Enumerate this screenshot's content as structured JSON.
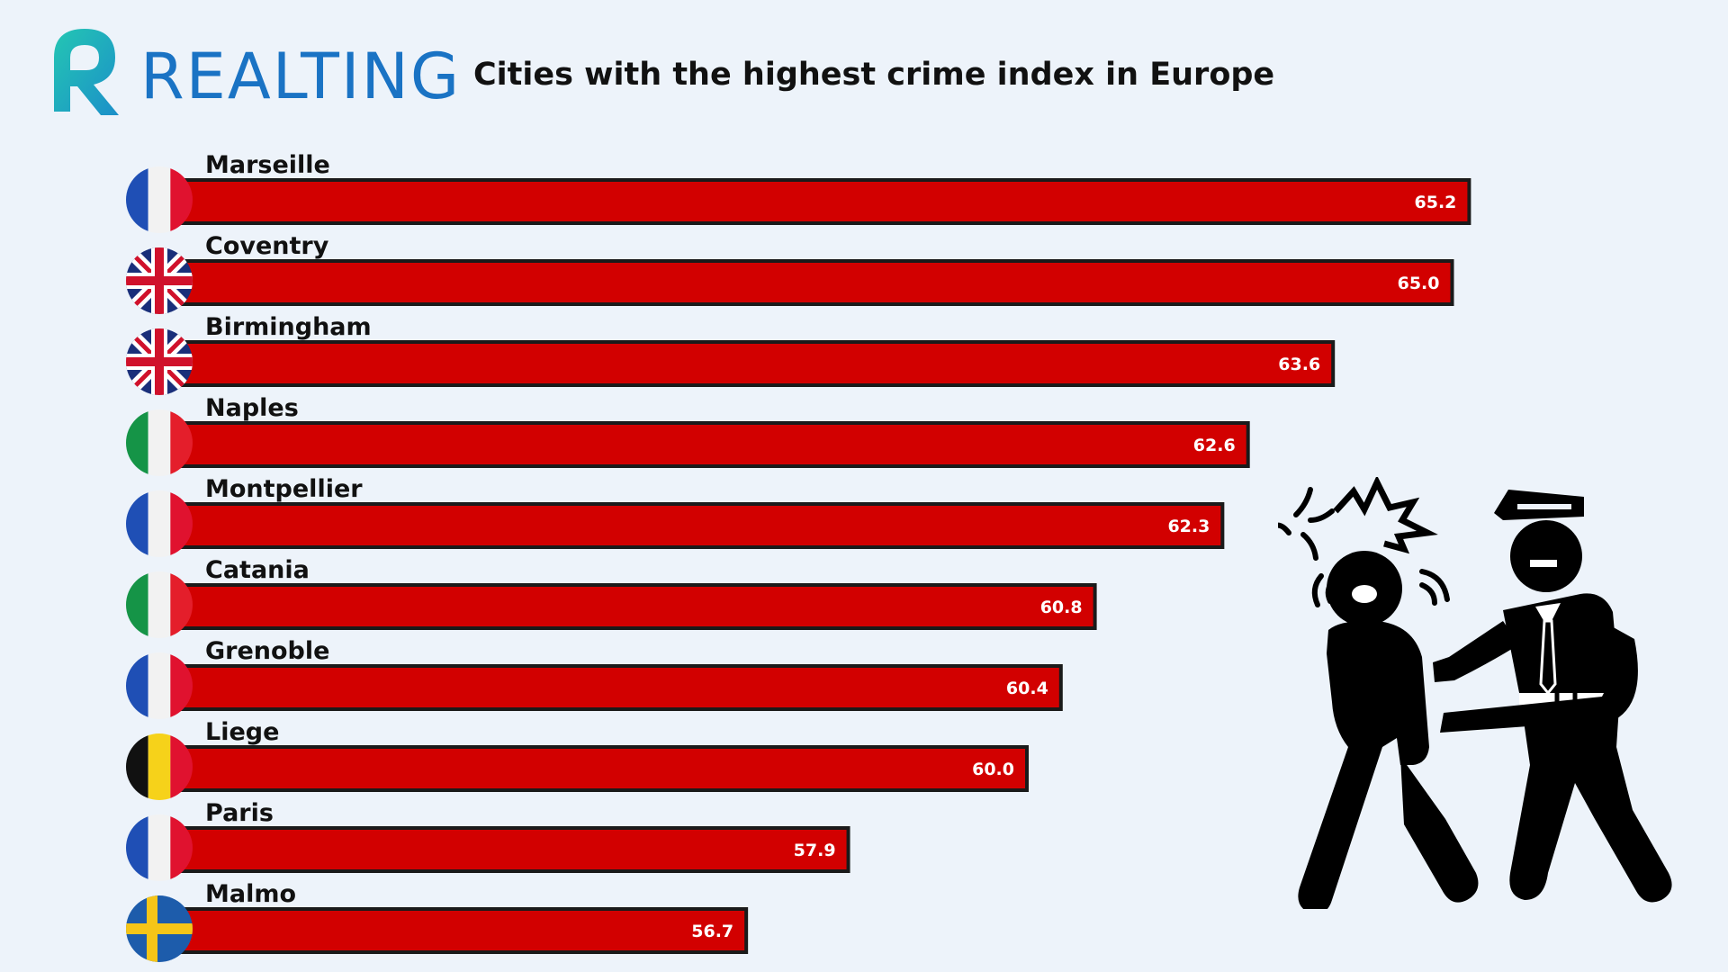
{
  "brand": {
    "name": "REALTING",
    "color": "#1a73c4",
    "icon": "realting-r-logo-icon"
  },
  "colors": {
    "bar_fill": "#d20000",
    "bar_border": "#1a1a1a",
    "background": "#edf3fa"
  },
  "illustration": {
    "icon": "police-arrest-icon"
  },
  "chart_data": {
    "type": "bar",
    "orientation": "horizontal",
    "title": "Cities with the highest crime index in Europe",
    "categories": [
      "Marseille",
      "Coventry",
      "Birmingham",
      "Naples",
      "Montpellier",
      "Catania",
      "Grenoble",
      "Liege",
      "Paris",
      "Malmo"
    ],
    "values": [
      65.2,
      65.0,
      63.6,
      62.6,
      62.3,
      60.8,
      60.4,
      60.0,
      57.9,
      56.7
    ],
    "value_labels": [
      "65.2",
      "65.0",
      "63.6",
      "62.6",
      "62.3",
      "60.8",
      "60.4",
      "60.0",
      "57.9",
      "56.7"
    ],
    "flags": [
      "france-flag-icon",
      "uk-flag-icon",
      "uk-flag-icon",
      "italy-flag-icon",
      "france-flag-icon",
      "italy-flag-icon",
      "france-flag-icon",
      "belgium-flag-icon",
      "france-flag-icon",
      "sweden-flag-icon"
    ],
    "x_axis_visible": false,
    "grid": false,
    "legend": "none",
    "xlim": [
      50,
      66
    ]
  }
}
